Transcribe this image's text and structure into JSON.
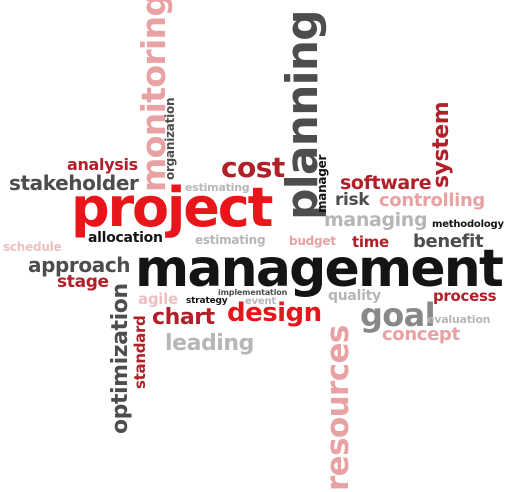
{
  "colors": {
    "red": "#e8161a",
    "dark_red": "#b12029",
    "pink": "#e8a2a3",
    "light_pink": "#eebfc0",
    "dark_gray": "#4d4d4d",
    "gray": "#888888",
    "light_gray": "#b6b6b6",
    "black": "#141414"
  },
  "words": {
    "monitoring": "monitoring",
    "organization": "organization",
    "planning": "planning",
    "manager": "manager",
    "system": "system",
    "analysis": "analysis",
    "stakeholder": "stakeholder",
    "cost": "cost",
    "estimating_top": "estimating",
    "software": "software",
    "risk": "risk",
    "controlling": "controlling",
    "project": "project",
    "managing": "managing",
    "methodology": "methodology",
    "schedule": "schedule",
    "allocation": "allocation",
    "estimating_mid": "estimating",
    "budget": "budget",
    "time": "time",
    "benefit": "benefit",
    "approach": "approach",
    "management": "management",
    "stage": "stage",
    "optimization": "optimization",
    "agile": "agile",
    "strategy": "strategy",
    "implementation": "implementation",
    "event": "event",
    "quality": "quality",
    "process": "process",
    "chart": "chart",
    "design": "design",
    "goal": "goal",
    "evaluation": "evaluation",
    "standard": "standard",
    "resources": "resources",
    "concept": "concept",
    "leading": "leading"
  }
}
